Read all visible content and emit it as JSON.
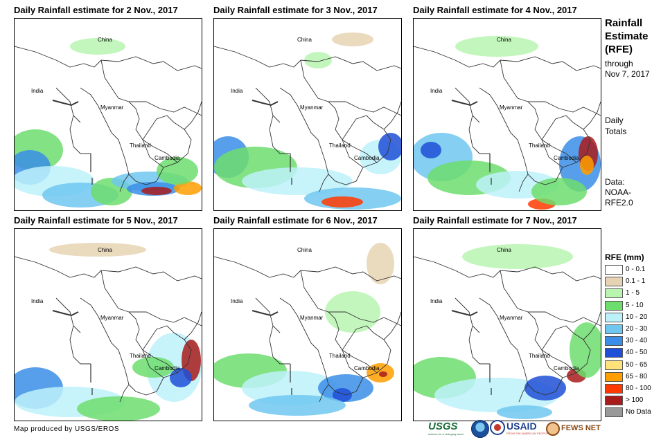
{
  "panels": [
    {
      "title": "Daily Rainfall estimate for 2 Nov., 2017"
    },
    {
      "title": "Daily Rainfall estimate for 3 Nov., 2017"
    },
    {
      "title": "Daily Rainfall estimate for 4 Nov., 2017"
    },
    {
      "title": "Daily Rainfall estimate for 5 Nov., 2017"
    },
    {
      "title": "Daily Rainfall estimate for 6 Nov., 2017"
    },
    {
      "title": "Daily Rainfall estimate for 7 Nov., 2017"
    }
  ],
  "map_labels": {
    "china": "China",
    "india": "India",
    "myanmar": "Myanmar",
    "thailand": "Thailand",
    "cambodia": "Cambodia"
  },
  "side": {
    "title_line1": "Rainfall",
    "title_line2": "Estimate",
    "title_line3": "(RFE)",
    "through": "through",
    "through_date": "Nov 7, 2017",
    "daily": "Daily",
    "totals": "Totals",
    "data_label": "Data:",
    "data_src1": "NOAA-",
    "data_src2": "RFE2.0"
  },
  "legend": {
    "title": "RFE (mm)",
    "items": [
      {
        "label": "0 - 0.1",
        "color": "#ffffff"
      },
      {
        "label": "0.1 - 1",
        "color": "#e6d3b3"
      },
      {
        "label": "1 - 5",
        "color": "#b9f5b0"
      },
      {
        "label": "5 - 10",
        "color": "#6ddd6d"
      },
      {
        "label": "10 - 20",
        "color": "#bdf1fa"
      },
      {
        "label": "20 - 30",
        "color": "#6fc7f0"
      },
      {
        "label": "30 - 40",
        "color": "#3b8ee8"
      },
      {
        "label": "40 - 50",
        "color": "#1e4fd6"
      },
      {
        "label": "50 - 65",
        "color": "#ffe27a"
      },
      {
        "label": "65 - 80",
        "color": "#ff9e00"
      },
      {
        "label": "80 - 100",
        "color": "#ff3a00"
      },
      {
        "label": "> 100",
        "color": "#a81b1b"
      },
      {
        "label": "No Data",
        "color": "#999999"
      }
    ]
  },
  "footer": {
    "credit": "Map produced by USGS/EROS",
    "usgs": "USGS",
    "usgs_tagline": "science for a changing world",
    "usaid": "USAID",
    "usaid_tagline": "FROM THE AMERICAN PEOPLE",
    "fewsnet": "FEWS NET"
  }
}
